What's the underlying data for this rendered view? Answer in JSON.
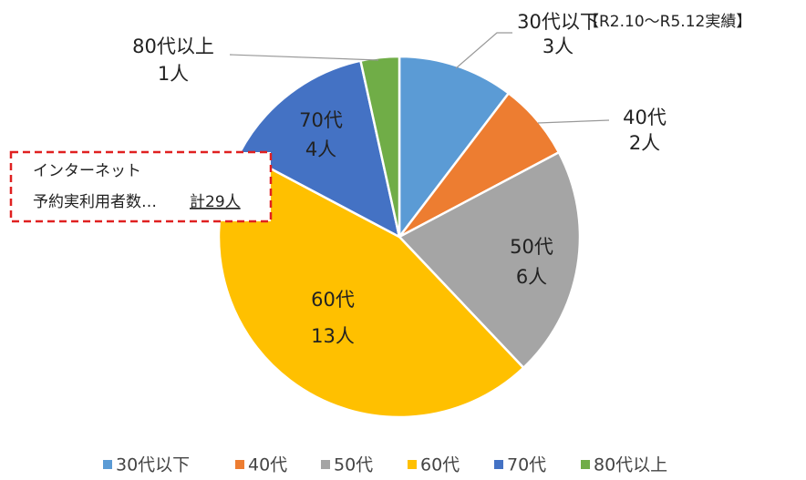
{
  "chart_data": {
    "type": "pie",
    "categories": [
      "30代以下",
      "40代",
      "50代",
      "60代",
      "70代",
      "80代以上"
    ],
    "values": [
      3,
      2,
      6,
      13,
      4,
      1
    ],
    "value_labels": [
      "3人",
      "2人",
      "6人",
      "13人",
      "4人",
      "1人"
    ],
    "colors": [
      "#5b9bd5",
      "#ed7d31",
      "#a5a5a5",
      "#ffc000",
      "#4472c4",
      "#70ad47"
    ],
    "annotation": "【R2.10～R5.12実績】",
    "note": {
      "line1": "インターネット",
      "line2": "予約実利用者数…",
      "total": "計29人"
    },
    "legend": "bottom"
  }
}
